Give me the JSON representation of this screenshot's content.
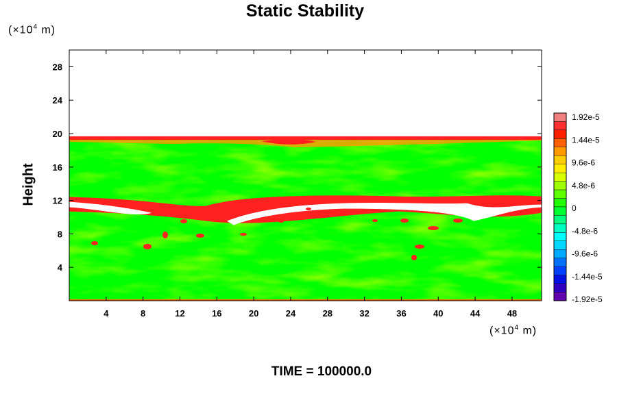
{
  "chart_data": {
    "type": "heatmap",
    "title": "Static Stability",
    "xlabel": "",
    "ylabel": "Height",
    "x_unit": {
      "prefix": "(×10",
      "exp": "4",
      "suffix": " m)"
    },
    "y_unit": {
      "prefix": "(×10",
      "exp": "4",
      "suffix": " m)"
    },
    "xlim": [
      0,
      51.2
    ],
    "ylim": [
      0,
      30
    ],
    "x_ticks": [
      "4",
      "8",
      "12",
      "16",
      "20",
      "24",
      "28",
      "32",
      "36",
      "40",
      "44",
      "48"
    ],
    "y_ticks": [
      "4",
      "8",
      "12",
      "16",
      "20",
      "24",
      "28"
    ],
    "colorbar": {
      "labels": [
        "1.92e-5",
        "1.44e-5",
        "9.6e-6",
        "4.8e-6",
        "0",
        "-4.8e-6",
        "-9.6e-6",
        "-1.44e-5",
        "-1.92e-5"
      ],
      "range": [
        -1.92e-05,
        1.92e-05
      ]
    },
    "field_description": {
      "model_top_height": 19.5,
      "tropopause_height": 12,
      "background_value": 0
    },
    "time_label": "TIME = 100000.0"
  }
}
